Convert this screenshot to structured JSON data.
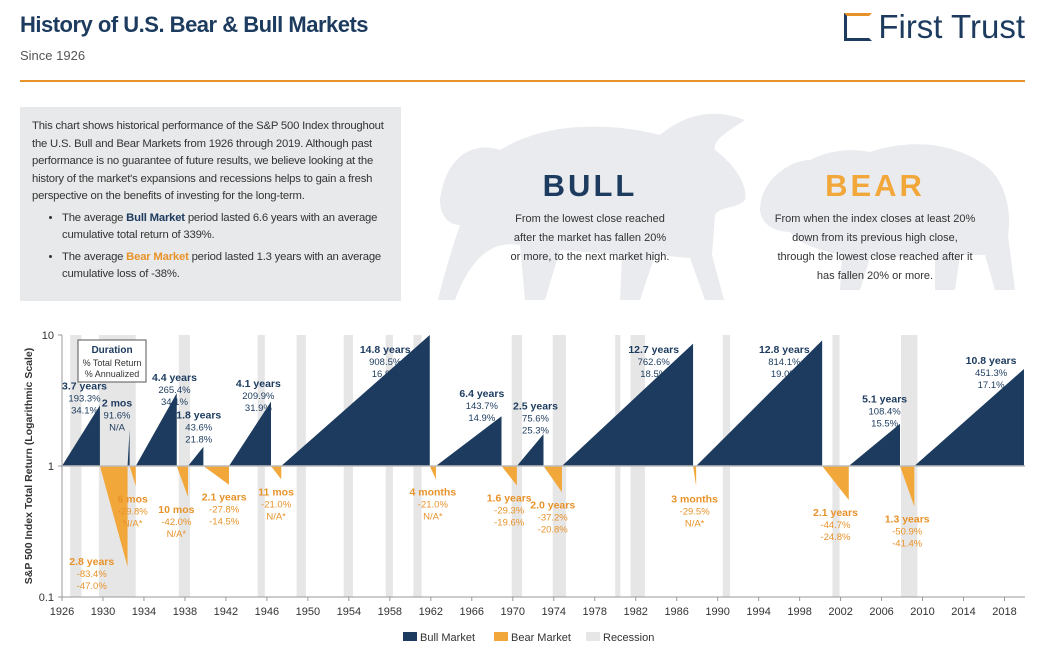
{
  "header": {
    "title": "History of U.S. Bear & Bull Markets",
    "subtitle": "Since 1926",
    "logo": "First Trust"
  },
  "intro": {
    "paragraph": "This chart shows historical performance of the S&P 500 Index throughout the U.S. Bull and Bear Markets from 1926 through 2019. Although past performance is no guarantee of future results, we believe looking at the history of the market's expansions and recessions helps to gain a fresh perspective on the benefits of investing for the long-term.",
    "bullets": [
      {
        "before": "The average ",
        "emphasis": "Bull Market",
        "after": " period lasted 6.6 years with an average cumulative total return of 339%."
      },
      {
        "before": "The average ",
        "emphasis": "Bear Market",
        "after": " period lasted 1.3 years with an average cumulative loss of -38%."
      }
    ]
  },
  "definitions": [
    {
      "title": "BULL",
      "text": "From the lowest close reached after the market has fallen 20% or more, to the next market high."
    },
    {
      "title": "BEAR",
      "text": "From when the index closes at least 20% down from its previous high close, through the lowest close reached after it has fallen 20% or more."
    }
  ],
  "chart_data": {
    "type": "market-cycles",
    "y_label": "S&P 500 Index Total Return (Logarithmic Scale)",
    "log_scale": true,
    "ylim": [
      0.1,
      10
    ],
    "yticks": [
      0.1,
      1,
      10
    ],
    "xlim": [
      1926,
      2020
    ],
    "xticks": [
      1926,
      1930,
      1934,
      1938,
      1942,
      1946,
      1950,
      1954,
      1958,
      1962,
      1966,
      1970,
      1974,
      1978,
      1982,
      1986,
      1990,
      1994,
      1998,
      2002,
      2006,
      2010,
      2014,
      2018
    ],
    "legend": "bottom",
    "key": {
      "title": "Duration",
      "lines": [
        "% Total Return",
        "% Annualized"
      ]
    },
    "bull_markets": {
      "name": "Bull Market",
      "color": "#1c3b5e",
      "label_color": "#1c3b5e",
      "periods": [
        {
          "start": 1926.0,
          "end": 1929.7,
          "peak": 2.9,
          "duration": "3.7 years",
          "total_return": "193.3%",
          "annualized": "34.1%"
        },
        {
          "start": 1932.4,
          "end": 1932.6,
          "peak": 1.9,
          "duration": "2 mos",
          "total_return": "91.6%",
          "annualized": "N/A"
        },
        {
          "start": 1933.2,
          "end": 1937.2,
          "peak": 3.6,
          "duration": "4.4 years",
          "total_return": "265.4%",
          "annualized": "34.1%"
        },
        {
          "start": 1938.3,
          "end": 1939.8,
          "peak": 1.4,
          "duration": "1.8 years",
          "total_return": "43.6%",
          "annualized": "21.8%"
        },
        {
          "start": 1942.3,
          "end": 1946.4,
          "peak": 3.1,
          "duration": "4.1 years",
          "total_return": "209.9%",
          "annualized": "31.9%"
        },
        {
          "start": 1947.4,
          "end": 1961.9,
          "peak": 10,
          "duration": "14.8 years",
          "total_return": "908.5%",
          "annualized": "16.9%"
        },
        {
          "start": 1962.5,
          "end": 1968.9,
          "peak": 2.4,
          "duration": "6.4 years",
          "total_return": "143.7%",
          "annualized": "14.9%"
        },
        {
          "start": 1970.4,
          "end": 1973.0,
          "peak": 1.75,
          "duration": "2.5 years",
          "total_return": "75.6%",
          "annualized": "25.3%"
        },
        {
          "start": 1974.8,
          "end": 1987.6,
          "peak": 8.6,
          "duration": "12.7 years",
          "total_return": "762.6%",
          "annualized": "18.5%"
        },
        {
          "start": 1987.9,
          "end": 2000.2,
          "peak": 9.1,
          "duration": "12.8 years",
          "total_return": "814.1%",
          "annualized": "19.0%"
        },
        {
          "start": 2002.8,
          "end": 2007.8,
          "peak": 2.1,
          "duration": "5.1 years",
          "total_return": "108.4%",
          "annualized": "15.5%"
        },
        {
          "start": 2009.2,
          "end": 2019.9,
          "peak": 5.5,
          "duration": "10.8 years",
          "total_return": "451.3%",
          "annualized": "17.1%"
        }
      ]
    },
    "bear_markets": {
      "name": "Bear Market",
      "color": "#f2a73b",
      "label_color": "#e8932a",
      "periods": [
        {
          "start": 1929.7,
          "end": 1932.4,
          "trough": 0.17,
          "duration": "2.8 years",
          "total_return": "-83.4%",
          "annualized": "-47.0%"
        },
        {
          "start": 1932.6,
          "end": 1933.2,
          "trough": 0.7,
          "duration": "6 mos",
          "total_return": "-29.8%",
          "annualized": "N/A*"
        },
        {
          "start": 1937.2,
          "end": 1938.3,
          "trough": 0.58,
          "duration": "10 mos",
          "total_return": "-42.0%",
          "annualized": "N/A*"
        },
        {
          "start": 1939.8,
          "end": 1942.3,
          "trough": 0.72,
          "duration": "2.1 years",
          "total_return": "-27.8%",
          "annualized": "-14.5%"
        },
        {
          "start": 1946.4,
          "end": 1947.4,
          "trough": 0.79,
          "duration": "11 mos",
          "total_return": "-21.0%",
          "annualized": "N/A*"
        },
        {
          "start": 1961.9,
          "end": 1962.5,
          "trough": 0.79,
          "duration": "4 months",
          "total_return": "-21.0%",
          "annualized": "N/A*"
        },
        {
          "start": 1968.9,
          "end": 1970.4,
          "trough": 0.71,
          "duration": "1.6 years",
          "total_return": "-29.3%",
          "annualized": "-19.6%"
        },
        {
          "start": 1973.0,
          "end": 1974.8,
          "trough": 0.63,
          "duration": "2.0 years",
          "total_return": "-37.2%",
          "annualized": "-20.8%"
        },
        {
          "start": 1987.6,
          "end": 1987.9,
          "trough": 0.7,
          "duration": "3 months",
          "total_return": "-29.5%",
          "annualized": "N/A*"
        },
        {
          "start": 2000.2,
          "end": 2002.8,
          "trough": 0.55,
          "duration": "2.1 years",
          "total_return": "-44.7%",
          "annualized": "-24.8%"
        },
        {
          "start": 2007.8,
          "end": 2009.2,
          "trough": 0.49,
          "duration": "1.3 years",
          "total_return": "-50.9%",
          "annualized": "-41.4%"
        }
      ]
    },
    "recessions": {
      "name": "Recession",
      "color": "#e6e6e6",
      "periods": [
        {
          "start": 1926.8,
          "end": 1927.9
        },
        {
          "start": 1929.6,
          "end": 1933.2
        },
        {
          "start": 1937.4,
          "end": 1938.5
        },
        {
          "start": 1945.1,
          "end": 1945.8
        },
        {
          "start": 1948.9,
          "end": 1949.8
        },
        {
          "start": 1953.5,
          "end": 1954.4
        },
        {
          "start": 1957.6,
          "end": 1958.3
        },
        {
          "start": 1960.3,
          "end": 1961.1
        },
        {
          "start": 1969.9,
          "end": 1970.9
        },
        {
          "start": 1973.9,
          "end": 1975.2
        },
        {
          "start": 1980.0,
          "end": 1980.5
        },
        {
          "start": 1981.5,
          "end": 1982.9
        },
        {
          "start": 1990.5,
          "end": 1991.2
        },
        {
          "start": 2001.2,
          "end": 2001.9
        },
        {
          "start": 2007.9,
          "end": 2009.5
        }
      ]
    }
  }
}
